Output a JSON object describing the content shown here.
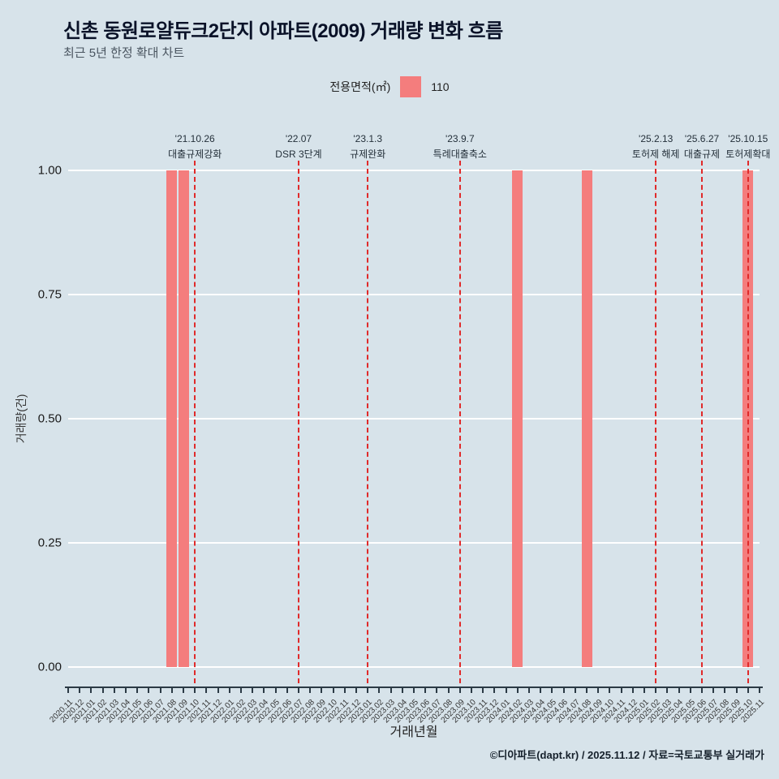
{
  "page": {
    "title": "신촌 동원로얄듀크2단지 아파트(2009) 거래량 변화 흐름",
    "subtitle": "최근 5년 한정 확대 차트",
    "footer": "©디아파트(dapt.kr) / 2025.11.12 / 자료=국토교통부 실거래가"
  },
  "legend": {
    "label": "전용면적(㎡)",
    "item": "110",
    "color": "#f47d7d"
  },
  "chart_data": {
    "type": "bar",
    "title": "신촌 동원로얄듀크2단지 아파트(2009) 거래량 변화 흐름",
    "xlabel": "거래년월",
    "ylabel": "거래량(건)",
    "ylim": [
      0,
      1.0
    ],
    "yticks": [
      0.0,
      0.25,
      0.5,
      0.75,
      1.0
    ],
    "grid": "horizontal-white",
    "legend_position": "top-center",
    "categories": [
      "2020.11",
      "2020.12",
      "2021.01",
      "2021.02",
      "2021.03",
      "2021.04",
      "2021.05",
      "2021.06",
      "2021.07",
      "2021.08",
      "2021.09",
      "2021.10",
      "2021.11",
      "2021.12",
      "2022.01",
      "2022.02",
      "2022.03",
      "2022.04",
      "2022.05",
      "2022.06",
      "2022.07",
      "2022.08",
      "2022.09",
      "2022.10",
      "2022.11",
      "2022.12",
      "2023.01",
      "2023.02",
      "2023.03",
      "2023.04",
      "2023.05",
      "2023.06",
      "2023.07",
      "2023.08",
      "2023.09",
      "2023.10",
      "2023.11",
      "2023.12",
      "2024.01",
      "2024.02",
      "2024.03",
      "2024.04",
      "2024.05",
      "2024.06",
      "2024.07",
      "2024.08",
      "2024.09",
      "2024.10",
      "2024.11",
      "2024.12",
      "2025.01",
      "2025.02",
      "2025.03",
      "2025.04",
      "2025.05",
      "2025.06",
      "2025.07",
      "2025.08",
      "2025.09",
      "2025.10",
      "2025.11"
    ],
    "series": [
      {
        "name": "110",
        "color": "#f47d7d",
        "values": [
          0,
          0,
          0,
          0,
          0,
          0,
          0,
          0,
          0,
          1,
          1,
          0,
          0,
          0,
          0,
          0,
          0,
          0,
          0,
          0,
          0,
          0,
          0,
          0,
          0,
          0,
          0,
          0,
          0,
          0,
          0,
          0,
          0,
          0,
          0,
          0,
          0,
          0,
          0,
          1,
          0,
          0,
          0,
          0,
          0,
          1,
          0,
          0,
          0,
          0,
          0,
          0,
          0,
          0,
          0,
          0,
          0,
          0,
          0,
          1,
          0
        ]
      }
    ],
    "annotations": [
      {
        "date": "'21.10.26",
        "label": "대출규제강화",
        "month": "2021.10"
      },
      {
        "date": "'22.07",
        "label": "DSR 3단계",
        "month": "2022.07"
      },
      {
        "date": "'23.1.3",
        "label": "규제완화",
        "month": "2023.01"
      },
      {
        "date": "'23.9.7",
        "label": "특례대출축소",
        "month": "2023.09"
      },
      {
        "date": "'25.2.13",
        "label": "토허제 해제",
        "month": "2025.02"
      },
      {
        "date": "'25.6.27",
        "label": "대출규제",
        "month": "2025.06"
      },
      {
        "date": "'25.10.15",
        "label": "토허제확대",
        "month": "2025.10"
      }
    ],
    "annotation_line_color": "#e02a2a"
  }
}
